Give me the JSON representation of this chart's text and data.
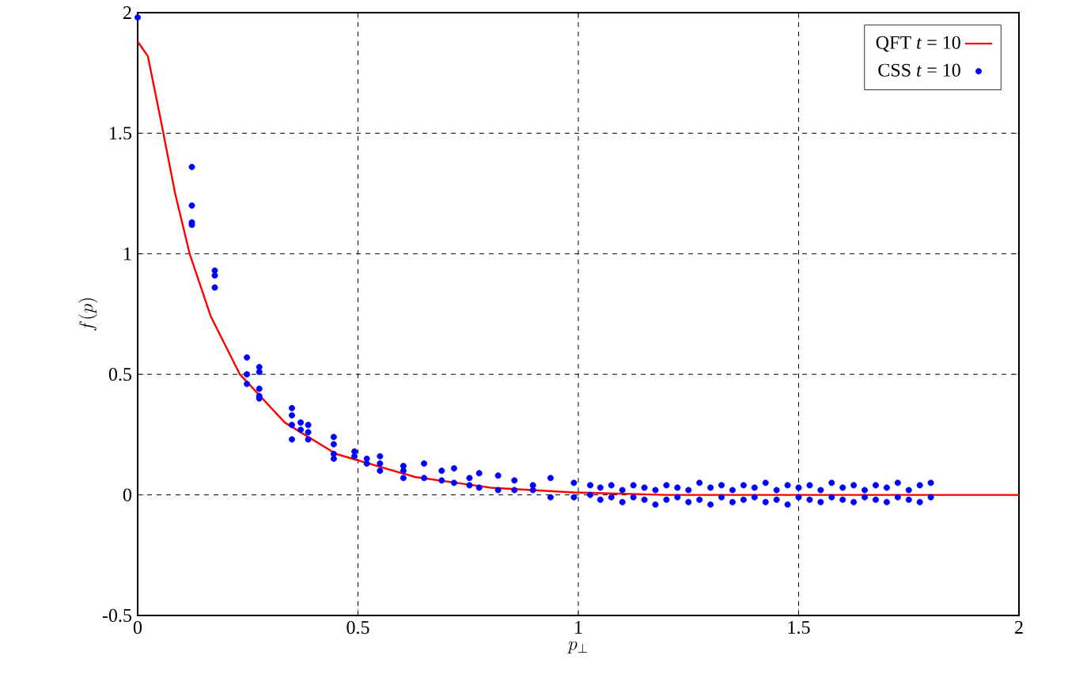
{
  "chart_data": {
    "type": "line",
    "xlabel": "p_\\perp",
    "ylabel": "f(p)",
    "xlim": [
      0,
      2
    ],
    "ylim": [
      -0.5,
      2
    ],
    "xticks": [
      0,
      0.5,
      1,
      1.5,
      2
    ],
    "yticks": [
      -0.5,
      0,
      0.5,
      1,
      1.5,
      2
    ],
    "grid": true,
    "legend": "top right",
    "series": [
      {
        "name": "QFT  *t* = 10",
        "color": "#ff0000",
        "marker": "none",
        "line_style": "solid",
        "x": [
          0,
          0.023,
          0.053,
          0.085,
          0.118,
          0.166,
          0.232,
          0.334,
          0.45,
          0.63,
          0.8,
          0.99,
          1.2,
          1.5,
          2
        ],
        "values": [
          1.88,
          1.82,
          1.55,
          1.25,
          1.0,
          0.74,
          0.5,
          0.3,
          0.17,
          0.074,
          0.03,
          0.01,
          0,
          0,
          0
        ]
      },
      {
        "name": "CSS  *t* = 10",
        "type": "scatter",
        "color": "#0000ff",
        "marker": "circle",
        "x": [
          0,
          0.123,
          0.123,
          0.123,
          0.123,
          0.175,
          0.175,
          0.175,
          0.248,
          0.248,
          0.248,
          0.276,
          0.276,
          0.276,
          0.276,
          0.276,
          0.35,
          0.35,
          0.35,
          0.35,
          0.37,
          0.37,
          0.387,
          0.387,
          0.387,
          0.445,
          0.445,
          0.445,
          0.445,
          0.492,
          0.492,
          0.52,
          0.52,
          0.55,
          0.55,
          0.55,
          0.603,
          0.603,
          0.603,
          0.65,
          0.65,
          0.69,
          0.69,
          0.718,
          0.718,
          0.753,
          0.753,
          0.775,
          0.775,
          0.818,
          0.818,
          0.855,
          0.855,
          0.897,
          0.897,
          0.937,
          0.937,
          0.99,
          0.99,
          1.027,
          1.027,
          1.05,
          1.05,
          1.075,
          1.075,
          1.1,
          1.1,
          1.125,
          1.125,
          1.15,
          1.15,
          1.175,
          1.175,
          1.2,
          1.2,
          1.225,
          1.225,
          1.25,
          1.25,
          1.275,
          1.275,
          1.3,
          1.3,
          1.325,
          1.325,
          1.35,
          1.35,
          1.375,
          1.375,
          1.4,
          1.4,
          1.425,
          1.425,
          1.45,
          1.45,
          1.475,
          1.475,
          1.5,
          1.5,
          1.525,
          1.525,
          1.55,
          1.55,
          1.575,
          1.575,
          1.6,
          1.6,
          1.625,
          1.625,
          1.65,
          1.65,
          1.675,
          1.675,
          1.7,
          1.7,
          1.725,
          1.725,
          1.75,
          1.75,
          1.775,
          1.775,
          1.8,
          1.8
        ],
        "values": [
          1.98,
          1.36,
          1.2,
          1.13,
          1.12,
          0.93,
          0.91,
          0.86,
          0.57,
          0.5,
          0.46,
          0.53,
          0.51,
          0.44,
          0.41,
          0.4,
          0.36,
          0.33,
          0.29,
          0.23,
          0.3,
          0.27,
          0.29,
          0.26,
          0.23,
          0.24,
          0.21,
          0.17,
          0.15,
          0.18,
          0.16,
          0.15,
          0.13,
          0.16,
          0.13,
          0.1,
          0.12,
          0.1,
          0.07,
          0.13,
          0.07,
          0.1,
          0.06,
          0.11,
          0.05,
          0.07,
          0.04,
          0.09,
          0.03,
          0.08,
          0.02,
          0.06,
          0.02,
          0.04,
          0.02,
          0.07,
          -0.01,
          0.05,
          -0.01,
          0.04,
          0.0,
          0.03,
          -0.02,
          0.04,
          -0.01,
          0.02,
          -0.03,
          0.04,
          -0.01,
          0.03,
          -0.02,
          0.02,
          -0.04,
          0.04,
          -0.02,
          0.03,
          -0.01,
          0.02,
          -0.03,
          0.05,
          -0.02,
          0.03,
          -0.04,
          0.04,
          -0.01,
          0.02,
          -0.03,
          0.04,
          -0.02,
          0.03,
          -0.01,
          0.05,
          -0.03,
          0.02,
          -0.02,
          0.04,
          -0.04,
          0.03,
          -0.01,
          0.04,
          -0.02,
          0.02,
          -0.03,
          0.05,
          -0.01,
          0.03,
          -0.02,
          0.04,
          -0.03,
          0.02,
          -0.01,
          0.04,
          -0.02,
          0.03,
          -0.03,
          0.05,
          -0.01,
          0.02,
          -0.02,
          0.04,
          -0.03,
          0.05,
          -0.01
        ]
      }
    ]
  }
}
